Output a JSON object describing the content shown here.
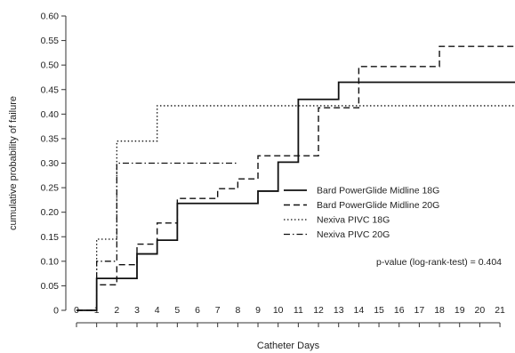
{
  "chart_data": {
    "type": "line",
    "subtype": "step (Kaplan-Meier cumulative failure)",
    "xlabel": "Catheter Days",
    "ylabel": "cumulative probability of failure",
    "xlim": [
      0,
      22
    ],
    "ylim": [
      0,
      0.6
    ],
    "xticks": [
      "0",
      "1",
      "2",
      "3",
      "4",
      "5",
      "6",
      "7",
      "8",
      "9",
      "10",
      "11",
      "12",
      "13",
      "14",
      "15",
      "16",
      "17",
      "18",
      "19",
      "20",
      "21"
    ],
    "yticks": [
      "0",
      "0.05",
      "0.10",
      "0.15",
      "0.20",
      "0.25",
      "0.30",
      "0.35",
      "0.40",
      "0.45",
      "0.50",
      "0.55",
      "0.60"
    ],
    "grid": false,
    "legend_position": "right, mid-height",
    "annotation": "p-value (log-rank-test) = 0.404",
    "series": [
      {
        "name": "Bard PowerGlide Midline 18G",
        "line_style": "solid",
        "x": [
          0,
          1,
          3,
          4,
          5,
          9,
          10,
          11,
          13,
          22
        ],
        "y": [
          0,
          0.065,
          0.115,
          0.143,
          0.218,
          0.243,
          0.302,
          0.43,
          0.465,
          0.465
        ]
      },
      {
        "name": "Bard PowerGlide Midline 20G",
        "line_style": "dashed",
        "x": [
          0,
          1,
          2,
          3,
          4,
          5,
          7,
          8,
          9,
          12,
          14,
          18,
          22
        ],
        "y": [
          0,
          0.052,
          0.093,
          0.135,
          0.178,
          0.228,
          0.248,
          0.268,
          0.315,
          0.413,
          0.497,
          0.538,
          0.538
        ]
      },
      {
        "name": "Nexiva PIVC 18G",
        "line_style": "dotted",
        "x": [
          0,
          1,
          2,
          4,
          22
        ],
        "y": [
          0,
          0.145,
          0.345,
          0.417,
          0.417
        ]
      },
      {
        "name": "Nexiva PIVC 20G",
        "line_style": "dashdot",
        "x": [
          0,
          1,
          2,
          8
        ],
        "y": [
          0,
          0.1,
          0.3,
          0.3
        ]
      }
    ]
  }
}
